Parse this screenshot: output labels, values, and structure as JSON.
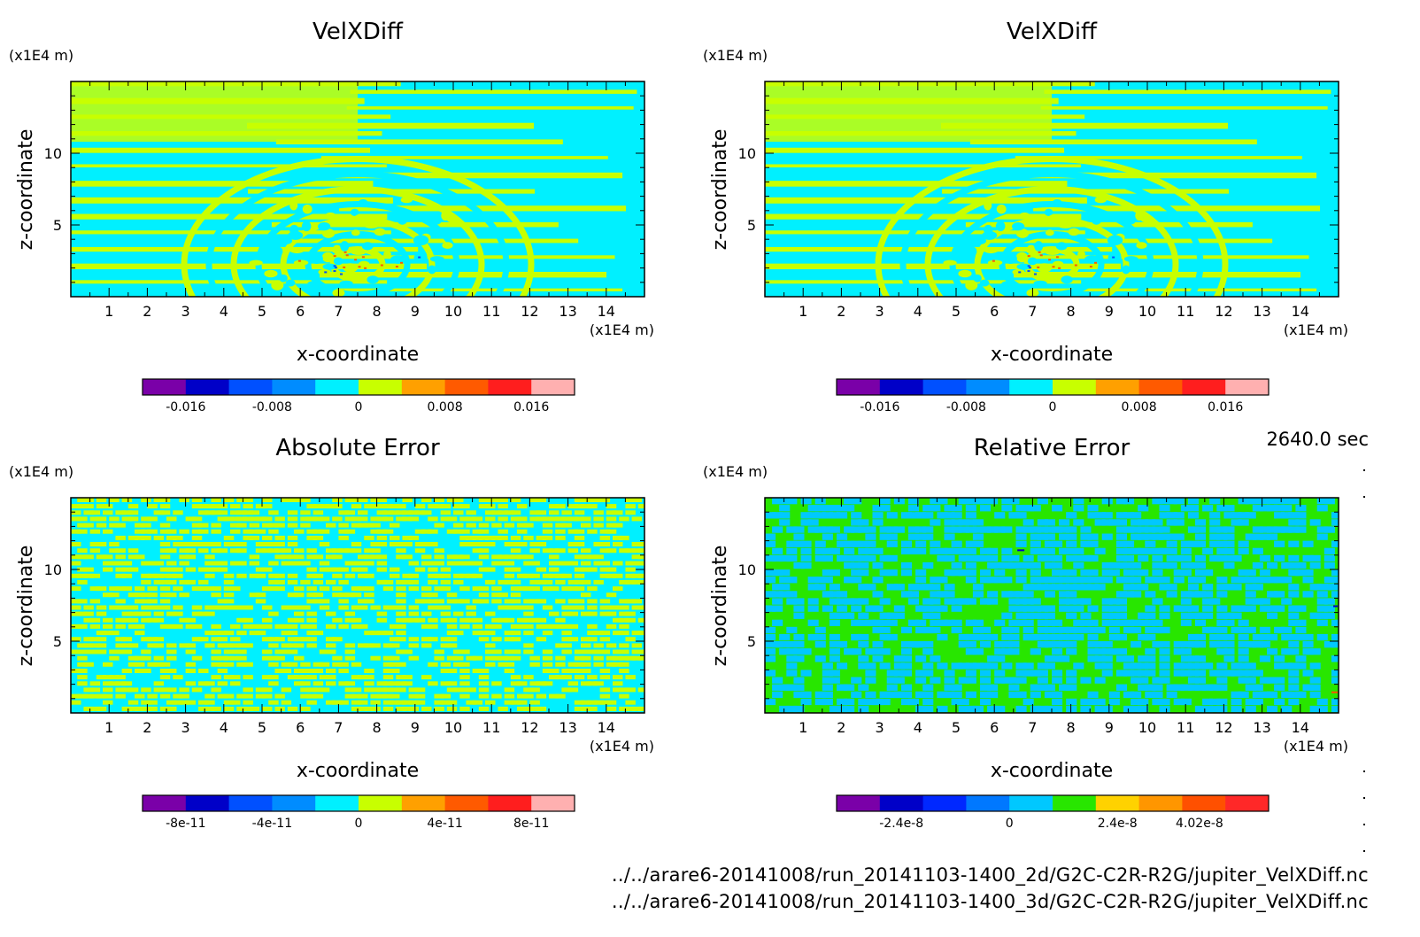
{
  "timestamp": "2640.0 sec",
  "files": [
    "../../arare6-20141008/run_20141103-1400_2d/G2C-C2R-R2G/jupiter_VelXDiff.nc",
    "../../arare6-20141008/run_20141103-1400_3d/G2C-C2R-R2G/jupiter_VelXDiff.nc"
  ],
  "chart_data": [
    {
      "type": "heatmap",
      "title": "VelXDiff",
      "xlabel": "x-coordinate",
      "ylabel": "z-coordinate",
      "x_unit": "(x1E4 m)",
      "y_unit": "(x1E4 m)",
      "xlim": [
        0,
        15
      ],
      "ylim": [
        0,
        15
      ],
      "x_ticks": [
        "1",
        "2",
        "3",
        "4",
        "5",
        "6",
        "7",
        "8",
        "9",
        "10",
        "11",
        "12",
        "13",
        "14"
      ],
      "y_ticks": [
        "5",
        "10"
      ],
      "pattern": "layered",
      "colorbar": {
        "colors": [
          "#7a00a8",
          "#0000c8",
          "#0050ff",
          "#008cff",
          "#00f0ff",
          "#c8ff00",
          "#ffa000",
          "#ff5a00",
          "#ff1e1e",
          "#ffb0b0"
        ],
        "labels": [
          "-0.016",
          "-0.008",
          "0",
          "0.008",
          "0.016"
        ],
        "label_positions": [
          1,
          3,
          5,
          7,
          9
        ]
      }
    },
    {
      "type": "heatmap",
      "title": "VelXDiff",
      "xlabel": "x-coordinate",
      "ylabel": "z-coordinate",
      "x_unit": "(x1E4 m)",
      "y_unit": "(x1E4 m)",
      "xlim": [
        0,
        15
      ],
      "ylim": [
        0,
        15
      ],
      "x_ticks": [
        "1",
        "2",
        "3",
        "4",
        "5",
        "6",
        "7",
        "8",
        "9",
        "10",
        "11",
        "12",
        "13",
        "14"
      ],
      "y_ticks": [
        "5",
        "10"
      ],
      "pattern": "layered",
      "colorbar": {
        "colors": [
          "#7a00a8",
          "#0000c8",
          "#0050ff",
          "#008cff",
          "#00f0ff",
          "#c8ff00",
          "#ffa000",
          "#ff5a00",
          "#ff1e1e",
          "#ffb0b0"
        ],
        "labels": [
          "-0.016",
          "-0.008",
          "0",
          "0.008",
          "0.016"
        ],
        "label_positions": [
          1,
          3,
          5,
          7,
          9
        ]
      }
    },
    {
      "type": "heatmap",
      "title": "Absolute Error",
      "xlabel": "x-coordinate",
      "ylabel": "z-coordinate",
      "x_unit": "(x1E4 m)",
      "y_unit": "(x1E4 m)",
      "xlim": [
        0,
        15
      ],
      "ylim": [
        0,
        15
      ],
      "x_ticks": [
        "1",
        "2",
        "3",
        "4",
        "5",
        "6",
        "7",
        "8",
        "9",
        "10",
        "11",
        "12",
        "13",
        "14"
      ],
      "y_ticks": [
        "5",
        "10"
      ],
      "pattern": "noise",
      "colorbar": {
        "colors": [
          "#7a00a8",
          "#0000c8",
          "#0050ff",
          "#008cff",
          "#00f0ff",
          "#c8ff00",
          "#ffa000",
          "#ff5a00",
          "#ff1e1e",
          "#ffb0b0"
        ],
        "labels": [
          "-8e-11",
          "-4e-11",
          "0",
          "4e-11",
          "8e-11"
        ],
        "label_positions": [
          1,
          3,
          5,
          7,
          9
        ]
      }
    },
    {
      "type": "heatmap",
      "title": "Relative Error",
      "xlabel": "x-coordinate",
      "ylabel": "z-coordinate",
      "x_unit": "(x1E4 m)",
      "y_unit": "(x1E4 m)",
      "xlim": [
        0,
        15
      ],
      "ylim": [
        0,
        15
      ],
      "x_ticks": [
        "1",
        "2",
        "3",
        "4",
        "5",
        "6",
        "7",
        "8",
        "9",
        "10",
        "11",
        "12",
        "13",
        "14"
      ],
      "y_ticks": [
        "5",
        "10"
      ],
      "pattern": "relative",
      "colorbar": {
        "colors": [
          "#7a00a8",
          "#0000c8",
          "#0028ff",
          "#0078ff",
          "#00c8ff",
          "#28e600",
          "#ffd200",
          "#ff9600",
          "#ff5000",
          "#ff2828"
        ],
        "labels": [
          "-2.4e-8",
          "0",
          "2.4e-8",
          "4.02e-8"
        ],
        "label_positions": [
          1.5,
          4,
          6.5,
          8.4
        ]
      }
    }
  ]
}
